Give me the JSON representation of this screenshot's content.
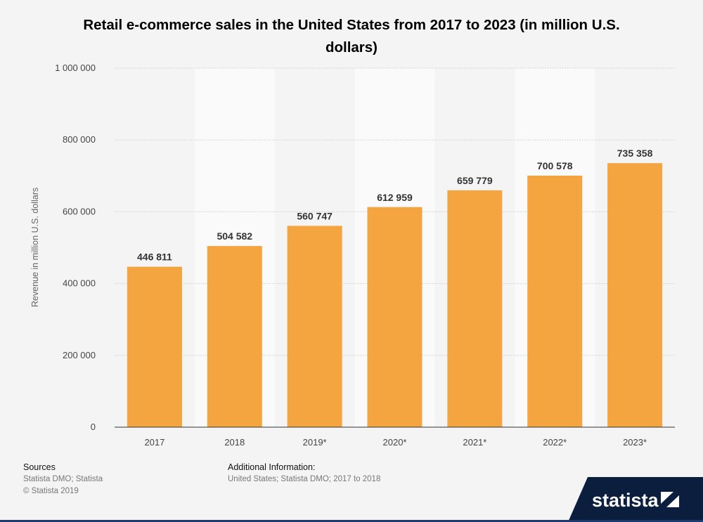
{
  "chart_data": {
    "type": "bar",
    "title": "Retail e-commerce sales in the United States from 2017 to 2023 (in million U.S. dollars)",
    "xlabel": "",
    "ylabel": "Revenue in million U.S. dollars",
    "categories": [
      "2017",
      "2018",
      "2019*",
      "2020*",
      "2021*",
      "2022*",
      "2023*"
    ],
    "values": [
      446811,
      504582,
      560747,
      612959,
      659779,
      700578,
      735358
    ],
    "value_labels": [
      "446 811",
      "504 582",
      "560 747",
      "612 959",
      "659 779",
      "700 578",
      "735 358"
    ],
    "ylim": [
      0,
      1000000
    ],
    "y_ticks": [
      0,
      200000,
      400000,
      600000,
      800000,
      1000000
    ],
    "y_tick_labels": [
      "0",
      "200 000",
      "400 000",
      "600 000",
      "800 000",
      "1 000 000"
    ],
    "grid": true,
    "bar_color": "#f4a540",
    "alternate_band_color": "#fafafa"
  },
  "footer": {
    "sources_heading": "Sources",
    "sources_line1": "Statista DMO; Statista",
    "sources_line2": "© Statista 2019",
    "additional_heading": "Additional Information:",
    "additional_text": "United States; Statista DMO; 2017 to 2018"
  },
  "brand": {
    "name": "statista",
    "banner_color": "#0b1e3d"
  }
}
